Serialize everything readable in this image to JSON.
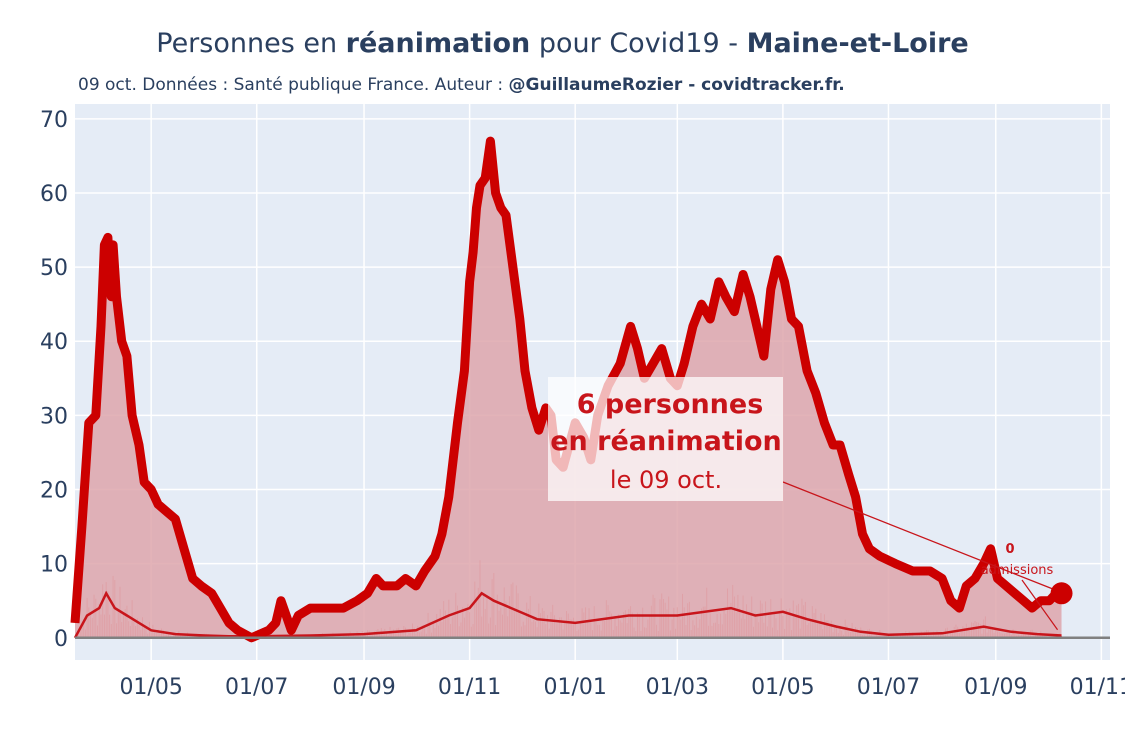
{
  "header": {
    "title_pre": "Personnes en ",
    "title_bold": "réanimation",
    "title_mid": " pour Covid19 - ",
    "title_region": "Maine-et-Loire",
    "subtitle_pre": "09 oct. Données : Santé publique France. Auteur : ",
    "subtitle_bold": "@GuillaumeRozier - covidtracker.fr."
  },
  "annotation": {
    "line1": "6 personnes",
    "line2": "en réanimation",
    "line3": "le 09 oct.",
    "admissions_value": "0",
    "admissions_label": "admissions"
  },
  "colors": {
    "main_line": "#cc0000",
    "fill": "#dea6ab",
    "plot_bg": "#e5ecf6",
    "grid": "#ffffff",
    "admissions": "#e05a5f"
  },
  "chart_data": {
    "type": "area",
    "title": "Personnes en réanimation pour Covid19 - Maine-et-Loire",
    "ylim": [
      -3,
      72
    ],
    "yticks": [
      0,
      10,
      20,
      30,
      40,
      50,
      60,
      70
    ],
    "xlim": [
      "2020-03-18",
      "2021-11-06"
    ],
    "xticks": [
      {
        "date": "2020-05-01",
        "label": "01/05"
      },
      {
        "date": "2020-07-01",
        "label": "01/07"
      },
      {
        "date": "2020-09-01",
        "label": "01/09"
      },
      {
        "date": "2020-11-01",
        "label": "01/11"
      },
      {
        "date": "2021-01-01",
        "label": "01/01"
      },
      {
        "date": "2021-03-01",
        "label": "01/03"
      },
      {
        "date": "2021-05-01",
        "label": "01/05"
      },
      {
        "date": "2021-07-01",
        "label": "01/07"
      },
      {
        "date": "2021-09-01",
        "label": "01/09"
      },
      {
        "date": "2021-11-01",
        "label": "01/11"
      }
    ],
    "series": [
      {
        "values": [
          [
            "2020-03-18",
            2
          ],
          [
            "2020-03-22",
            15
          ],
          [
            "2020-03-26",
            29
          ],
          [
            "2020-03-30",
            30
          ],
          [
            "2020-04-02",
            42
          ],
          [
            "2020-04-04",
            53
          ],
          [
            "2020-04-06",
            54
          ],
          [
            "2020-04-08",
            46
          ],
          [
            "2020-04-09",
            53
          ],
          [
            "2020-04-11",
            46
          ],
          [
            "2020-04-14",
            40
          ],
          [
            "2020-04-17",
            38
          ],
          [
            "2020-04-20",
            30
          ],
          [
            "2020-04-24",
            26
          ],
          [
            "2020-04-27",
            21
          ],
          [
            "2020-05-01",
            20
          ],
          [
            "2020-05-05",
            18
          ],
          [
            "2020-05-10",
            17
          ],
          [
            "2020-05-15",
            16
          ],
          [
            "2020-05-20",
            12
          ],
          [
            "2020-05-25",
            8
          ],
          [
            "2020-05-30",
            7
          ],
          [
            "2020-06-05",
            6
          ],
          [
            "2020-06-10",
            4
          ],
          [
            "2020-06-15",
            2
          ],
          [
            "2020-06-20",
            1
          ],
          [
            "2020-06-28",
            0
          ],
          [
            "2020-07-08",
            1
          ],
          [
            "2020-07-12",
            2
          ],
          [
            "2020-07-15",
            5
          ],
          [
            "2020-07-18",
            3
          ],
          [
            "2020-07-21",
            1
          ],
          [
            "2020-07-25",
            3
          ],
          [
            "2020-08-01",
            4
          ],
          [
            "2020-08-10",
            4
          ],
          [
            "2020-08-20",
            4
          ],
          [
            "2020-08-28",
            5
          ],
          [
            "2020-09-03",
            6
          ],
          [
            "2020-09-08",
            8
          ],
          [
            "2020-09-12",
            7
          ],
          [
            "2020-09-20",
            7
          ],
          [
            "2020-09-25",
            8
          ],
          [
            "2020-10-01",
            7
          ],
          [
            "2020-10-06",
            9
          ],
          [
            "2020-10-12",
            11
          ],
          [
            "2020-10-16",
            14
          ],
          [
            "2020-10-20",
            19
          ],
          [
            "2020-10-25",
            29
          ],
          [
            "2020-10-29",
            36
          ],
          [
            "2020-11-01",
            48
          ],
          [
            "2020-11-03",
            52
          ],
          [
            "2020-11-05",
            58
          ],
          [
            "2020-11-07",
            61
          ],
          [
            "2020-11-10",
            62
          ],
          [
            "2020-11-13",
            67
          ],
          [
            "2020-11-16",
            60
          ],
          [
            "2020-11-19",
            58
          ],
          [
            "2020-11-22",
            57
          ],
          [
            "2020-11-26",
            50
          ],
          [
            "2020-11-30",
            43
          ],
          [
            "2020-12-03",
            36
          ],
          [
            "2020-12-07",
            31
          ],
          [
            "2020-12-11",
            28
          ],
          [
            "2020-12-15",
            31
          ],
          [
            "2020-12-18",
            30
          ],
          [
            "2020-12-21",
            24
          ],
          [
            "2020-12-25",
            23
          ],
          [
            "2021-01-01",
            29
          ],
          [
            "2021-01-06",
            27
          ],
          [
            "2021-01-10",
            24
          ],
          [
            "2021-01-14",
            30
          ],
          [
            "2021-01-20",
            34
          ],
          [
            "2021-01-27",
            37
          ],
          [
            "2021-02-02",
            42
          ],
          [
            "2021-02-06",
            39
          ],
          [
            "2021-02-10",
            35
          ],
          [
            "2021-02-15",
            37
          ],
          [
            "2021-02-20",
            39
          ],
          [
            "2021-02-25",
            35
          ],
          [
            "2021-03-01",
            34
          ],
          [
            "2021-03-05",
            37
          ],
          [
            "2021-03-10",
            42
          ],
          [
            "2021-03-15",
            45
          ],
          [
            "2021-03-20",
            43
          ],
          [
            "2021-03-25",
            48
          ],
          [
            "2021-03-29",
            46
          ],
          [
            "2021-04-03",
            44
          ],
          [
            "2021-04-08",
            49
          ],
          [
            "2021-04-12",
            46
          ],
          [
            "2021-04-16",
            42
          ],
          [
            "2021-04-20",
            38
          ],
          [
            "2021-04-24",
            47
          ],
          [
            "2021-04-28",
            51
          ],
          [
            "2021-05-02",
            48
          ],
          [
            "2021-05-06",
            43
          ],
          [
            "2021-05-10",
            42
          ],
          [
            "2021-05-15",
            36
          ],
          [
            "2021-05-20",
            33
          ],
          [
            "2021-05-25",
            29
          ],
          [
            "2021-05-30",
            26
          ],
          [
            "2021-06-03",
            26
          ],
          [
            "2021-06-08",
            22
          ],
          [
            "2021-06-12",
            19
          ],
          [
            "2021-06-16",
            14
          ],
          [
            "2021-06-20",
            12
          ],
          [
            "2021-06-26",
            11
          ],
          [
            "2021-07-05",
            10
          ],
          [
            "2021-07-15",
            9
          ],
          [
            "2021-07-25",
            9
          ],
          [
            "2021-08-01",
            8
          ],
          [
            "2021-08-06",
            5
          ],
          [
            "2021-08-11",
            4
          ],
          [
            "2021-08-15",
            7
          ],
          [
            "2021-08-20",
            8
          ],
          [
            "2021-08-25",
            10
          ],
          [
            "2021-08-29",
            12
          ],
          [
            "2021-09-02",
            8
          ],
          [
            "2021-09-07",
            7
          ],
          [
            "2021-09-12",
            6
          ],
          [
            "2021-09-17",
            5
          ],
          [
            "2021-09-22",
            4
          ],
          [
            "2021-09-27",
            5
          ],
          [
            "2021-10-02",
            5
          ],
          [
            "2021-10-06",
            6
          ],
          [
            "2021-10-09",
            6
          ]
        ]
      },
      {
        "values": [
          [
            "2020-03-18",
            0
          ],
          [
            "2020-03-25",
            3
          ],
          [
            "2020-04-01",
            4
          ],
          [
            "2020-04-05",
            6
          ],
          [
            "2020-04-10",
            4
          ],
          [
            "2020-04-17",
            3
          ],
          [
            "2020-04-24",
            2
          ],
          [
            "2020-05-01",
            1
          ],
          [
            "2020-05-15",
            0.5
          ],
          [
            "2020-06-01",
            0.3
          ],
          [
            "2020-06-15",
            0.2
          ],
          [
            "2020-07-01",
            0.2
          ],
          [
            "2020-08-01",
            0.3
          ],
          [
            "2020-09-01",
            0.5
          ],
          [
            "2020-10-01",
            1
          ],
          [
            "2020-10-20",
            3
          ],
          [
            "2020-11-01",
            4
          ],
          [
            "2020-11-08",
            6
          ],
          [
            "2020-11-15",
            5
          ],
          [
            "2020-11-25",
            4
          ],
          [
            "2020-12-10",
            2.5
          ],
          [
            "2021-01-01",
            2
          ],
          [
            "2021-02-01",
            3
          ],
          [
            "2021-03-01",
            3
          ],
          [
            "2021-04-01",
            4
          ],
          [
            "2021-04-15",
            3
          ],
          [
            "2021-05-01",
            3.5
          ],
          [
            "2021-05-15",
            2.5
          ],
          [
            "2021-06-01",
            1.5
          ],
          [
            "2021-06-15",
            0.8
          ],
          [
            "2021-07-01",
            0.4
          ],
          [
            "2021-08-01",
            0.6
          ],
          [
            "2021-08-25",
            1.5
          ],
          [
            "2021-09-10",
            0.8
          ],
          [
            "2021-09-25",
            0.5
          ],
          [
            "2021-10-09",
            0.3
          ]
        ]
      }
    ],
    "last_point": {
      "date": "2021-10-09",
      "value": 6
    }
  }
}
